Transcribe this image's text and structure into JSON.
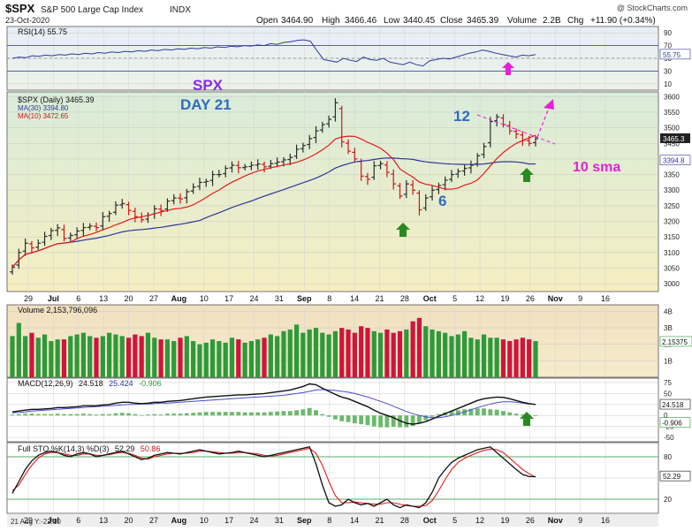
{
  "header": {
    "symbol": "$SPX",
    "name": "S&P 500 Large Cap Index",
    "exchange": "INDX",
    "date": "23-Oct-2020",
    "watermark": "@ StockCharts.com",
    "open_label": "Open",
    "open": "3464.90",
    "high_label": "High",
    "high": "3466.46",
    "low_label": "Low",
    "low": "3440.45",
    "close_label": "Close",
    "close": "3465.39",
    "volume_label": "Volume",
    "volume": "2.2B",
    "chg_label": "Chg",
    "chg": "+11.90 (+0.34%)"
  },
  "footer": {
    "note": "21 Aug Y:-22.10"
  },
  "colors": {
    "up": "#2c2c2c",
    "down": "#d0141c",
    "ma10": "#e8191c",
    "ma30": "#2d3a9a",
    "vol_up": "#2d9a3a",
    "vol_down": "#d0143c",
    "annotation": "#e81fd8",
    "arrow": "#2a8a22",
    "spx_text": "#8a2be2",
    "day_text": "#2e6cc0"
  },
  "chart_data": [
    {
      "type": "line",
      "panel": "rsi",
      "legend": "RSI(14) 55.75",
      "y_ticks": [
        "90",
        "70",
        "50",
        "30",
        "10"
      ],
      "ylim": [
        0,
        100
      ],
      "bands": [
        30,
        70
      ],
      "last_label": "55.75",
      "values": [
        50,
        52,
        51,
        54,
        53,
        55,
        54,
        56,
        55,
        57,
        56,
        58,
        57,
        59,
        58,
        60,
        59,
        61,
        60,
        62,
        61,
        63,
        62,
        64,
        63,
        65,
        64,
        66,
        65,
        67,
        66,
        68,
        67,
        69,
        68,
        70,
        69,
        71,
        70,
        73,
        72,
        75,
        76,
        78,
        79,
        77,
        62,
        48,
        46,
        44,
        50,
        47,
        45,
        52,
        48,
        47,
        50,
        44,
        42,
        40,
        44,
        40,
        38,
        46,
        48,
        50,
        49,
        52,
        55,
        58,
        60,
        63,
        61,
        58,
        56,
        54,
        52,
        55,
        54,
        56
      ]
    },
    {
      "type": "candlestick",
      "panel": "price",
      "legend_title": "$SPX (Daily) 3465.39",
      "ma30_label": "MA(30) 3394.80",
      "ma10_label": "MA(10) 3472.65",
      "ylim": [
        2975,
        3615
      ],
      "y_ticks": [
        "3600",
        "3550",
        "3500",
        "3450",
        "3400",
        "3350",
        "3300",
        "3250",
        "3200",
        "3150",
        "3100",
        "3050",
        "3000"
      ],
      "last_price_label": "3465.3",
      "ma30_last_label": "3394.8",
      "x_ticks": [
        "29",
        "Jul",
        "6",
        "13",
        "20",
        "27",
        "Aug",
        "10",
        "17",
        "24",
        "31",
        "Sep",
        "8",
        "14",
        "21",
        "28",
        "Oct",
        "5",
        "12",
        "19",
        "26",
        "Nov",
        "9",
        "16"
      ],
      "annotations": {
        "spx": "SPX",
        "day": "DAY 21",
        "label_12": "12",
        "label_6": "6",
        "sma": "10 sma"
      },
      "close": [
        3053,
        3100,
        3130,
        3115,
        3130,
        3152,
        3170,
        3179,
        3145,
        3155,
        3169,
        3180,
        3185,
        3180,
        3215,
        3225,
        3252,
        3257,
        3235,
        3215,
        3205,
        3220,
        3240,
        3235,
        3265,
        3275,
        3272,
        3295,
        3310,
        3325,
        3328,
        3350,
        3350,
        3370,
        3380,
        3372,
        3375,
        3380,
        3384,
        3375,
        3385,
        3390,
        3397,
        3405,
        3431,
        3443,
        3465,
        3490,
        3510,
        3527,
        3580,
        3455,
        3425,
        3400,
        3345,
        3335,
        3378,
        3385,
        3357,
        3320,
        3281,
        3320,
        3300,
        3237,
        3275,
        3300,
        3315,
        3332,
        3350,
        3360,
        3370,
        3380,
        3410,
        3440,
        3520,
        3535,
        3510,
        3490,
        3480,
        3460,
        3450,
        3465
      ]
    },
    {
      "type": "bar",
      "panel": "volume",
      "legend": "Volume 2,153,796,096",
      "y_ticks": [
        "4B",
        "3B",
        "2B",
        "1B"
      ],
      "last_label": "2.15375",
      "values_billion": [
        2.5,
        3.3,
        2.5,
        2.7,
        2.4,
        2.6,
        2.2,
        2.3,
        2.3,
        2.5,
        2.6,
        2.7,
        2.5,
        2.4,
        2.5,
        2.7,
        2.6,
        2.5,
        2.4,
        2.6,
        2.5,
        2.7,
        2.4,
        2.3,
        2.3,
        2.2,
        2.4,
        2.5,
        2.2,
        2.0,
        2.1,
        2.3,
        2.2,
        2.1,
        2.4,
        2.3,
        2.1,
        2.2,
        2.3,
        2.4,
        2.6,
        2.5,
        2.8,
        2.9,
        3.2,
        2.7,
        2.9,
        3.0,
        2.7,
        2.6,
        2.8,
        3.0,
        2.9,
        2.7,
        3.1,
        3.0,
        2.8,
        2.7,
        2.9,
        2.7,
        2.8,
        2.9,
        3.4,
        3.6,
        3.1,
        2.9,
        2.8,
        2.7,
        2.5,
        2.6,
        2.8,
        2.4,
        2.3,
        2.6,
        2.4,
        2.4,
        2.3,
        2.2,
        2.3,
        2.4,
        2.3,
        2.2
      ]
    },
    {
      "type": "line",
      "panel": "macd",
      "legend_prefix": "MACD(12,26,9)",
      "macd_value": "24.518",
      "signal_value": "25.424",
      "hist_value": "-0.906",
      "y_ticks": [
        "75",
        "50",
        "25",
        "0",
        "-25",
        "-50"
      ],
      "ylim": [
        -60,
        85
      ],
      "last_macd_label": "24.518",
      "last_hist_label": "-0.906",
      "macd": [
        8,
        10,
        12,
        14,
        14,
        15,
        16,
        18,
        18,
        19,
        20,
        22,
        22,
        22,
        24,
        25,
        28,
        30,
        30,
        28,
        27,
        28,
        30,
        30,
        32,
        33,
        34,
        36,
        38,
        40,
        42,
        43,
        44,
        45,
        46,
        47,
        47,
        48,
        49,
        50,
        52,
        54,
        56,
        58,
        62,
        66,
        72,
        70,
        62,
        55,
        48,
        42,
        38,
        32,
        26,
        20,
        12,
        5,
        0,
        -5,
        -12,
        -18,
        -20,
        -18,
        -14,
        -8,
        -2,
        4,
        10,
        16,
        22,
        28,
        34,
        38,
        40,
        42,
        41,
        38,
        34,
        30,
        27,
        25
      ],
      "signal": [
        6,
        7,
        8,
        10,
        11,
        12,
        13,
        14,
        15,
        16,
        17,
        18,
        19,
        20,
        21,
        22,
        23,
        24,
        25,
        25,
        26,
        26,
        27,
        28,
        28,
        29,
        30,
        31,
        32,
        33,
        34,
        35,
        36,
        37,
        38,
        39,
        40,
        41,
        42,
        43,
        44,
        45,
        46,
        48,
        50,
        52,
        55,
        58,
        59,
        58,
        57,
        55,
        53,
        50,
        46,
        42,
        37,
        32,
        27,
        21,
        15,
        9,
        4,
        0,
        -3,
        -5,
        -5,
        -3,
        0,
        4,
        8,
        13,
        18,
        22,
        26,
        29,
        31,
        31,
        30,
        28,
        26,
        25
      ]
    },
    {
      "type": "line",
      "panel": "stochastics",
      "legend_prefix": "Full STO %K(14,3) %D(3)",
      "k_value": "52.29",
      "d_value": "50.86",
      "y_ticks": [
        "80",
        "50",
        "20"
      ],
      "ylim": [
        0,
        100
      ],
      "last_label": "52.29",
      "k": [
        28,
        45,
        62,
        74,
        82,
        86,
        88,
        86,
        82,
        80,
        84,
        86,
        84,
        80,
        82,
        84,
        86,
        88,
        84,
        80,
        76,
        78,
        82,
        84,
        86,
        85,
        84,
        86,
        88,
        90,
        88,
        86,
        84,
        85,
        86,
        88,
        86,
        84,
        82,
        80,
        82,
        84,
        86,
        88,
        90,
        92,
        94,
        70,
        40,
        15,
        10,
        12,
        20,
        15,
        12,
        14,
        10,
        15,
        20,
        12,
        8,
        12,
        10,
        8,
        15,
        30,
        50,
        62,
        72,
        78,
        82,
        86,
        90,
        92,
        94,
        86,
        78,
        70,
        62,
        55,
        52,
        52
      ],
      "d": [
        32,
        40,
        55,
        68,
        78,
        84,
        86,
        86,
        84,
        82,
        82,
        84,
        84,
        82,
        82,
        83,
        85,
        86,
        85,
        82,
        78,
        77,
        80,
        82,
        84,
        85,
        85,
        85,
        86,
        88,
        88,
        87,
        86,
        85,
        85,
        86,
        86,
        85,
        84,
        82,
        81,
        82,
        84,
        86,
        88,
        90,
        92,
        85,
        68,
        45,
        25,
        15,
        15,
        16,
        15,
        14,
        13,
        13,
        15,
        15,
        13,
        11,
        10,
        10,
        11,
        18,
        32,
        48,
        62,
        72,
        78,
        82,
        86,
        89,
        91,
        90,
        86,
        78,
        70,
        62,
        56,
        51
      ]
    }
  ]
}
